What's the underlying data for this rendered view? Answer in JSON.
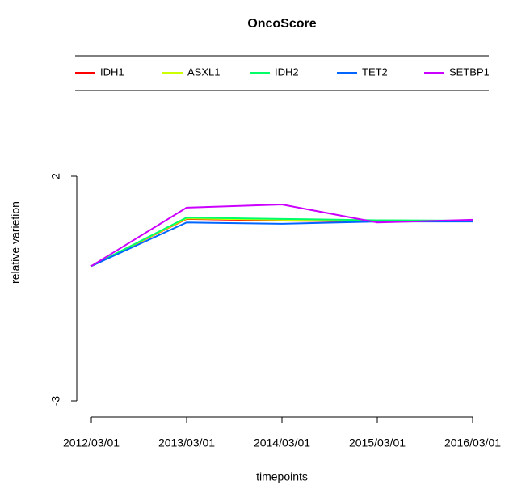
{
  "chart_data": {
    "type": "line",
    "title": "OncoScore",
    "x_label": "timepoints",
    "y_label": "relative varietion",
    "categories": [
      "2012/03/01",
      "2013/03/01",
      "2014/03/01",
      "2015/03/01",
      "2016/03/01"
    ],
    "series": [
      {
        "name": "IDH1",
        "color": "#ff0000",
        "values": [
          0,
          1.05,
          1.01,
          1.0,
          1.0
        ]
      },
      {
        "name": "ASXL1",
        "color": "#ccff00",
        "values": [
          0,
          1.06,
          1.03,
          1.01,
          1.0
        ]
      },
      {
        "name": "IDH2",
        "color": "#00ff66",
        "values": [
          0,
          1.08,
          1.05,
          1.02,
          1.01
        ]
      },
      {
        "name": "TET2",
        "color": "#0066ff",
        "values": [
          0,
          0.97,
          0.94,
          0.99,
          0.99
        ]
      },
      {
        "name": "SETBP1",
        "color": "#cc00ff",
        "values": [
          0,
          1.3,
          1.37,
          0.97,
          1.03
        ]
      }
    ],
    "ylim": [
      -3,
      2
    ],
    "yticks": [
      -3,
      2
    ],
    "grid": false,
    "legend": "top"
  }
}
